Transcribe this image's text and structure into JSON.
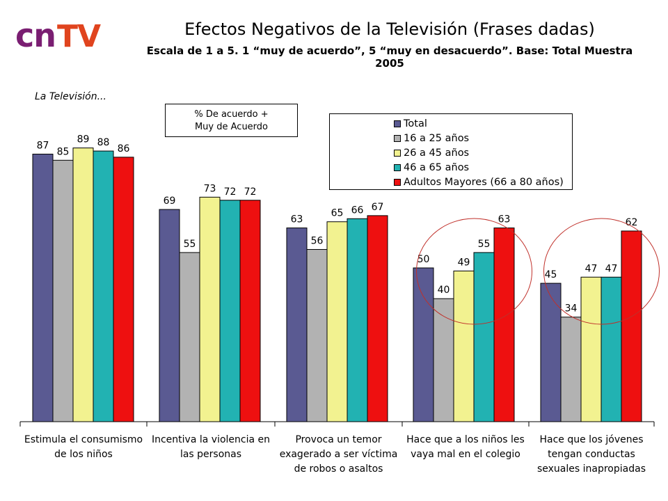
{
  "logo": {
    "part1": "cn",
    "part2": "TV"
  },
  "title": "Efectos Negativos de la Televisión (Frases dadas)",
  "subtitle": "Escala de 1 a 5. 1 “muy de acuerdo”, 5 “muy en desacuerdo”. Base: Total Muestra 2005",
  "intro": "La Televisión...",
  "note": {
    "line1": "% De acuerdo +",
    "line2": "Muy de Acuerdo"
  },
  "chart_data": {
    "type": "bar",
    "categories": [
      [
        "Estimula el consumismo",
        "de los niños"
      ],
      [
        "Incentiva la violencia en",
        "las personas"
      ],
      [
        "Provoca un temor",
        "exagerado a ser víctima",
        "de robos o asaltos"
      ],
      [
        "Hace que a los niños les",
        "vaya mal en el colegio"
      ],
      [
        "Hace que los jóvenes",
        "tengan conductas",
        "sexuales inapropiadas"
      ]
    ],
    "series": [
      {
        "name": "Total",
        "color": "#5a5a92",
        "values": [
          87,
          69,
          63,
          50,
          45
        ]
      },
      {
        "name": "16 a 25 años",
        "color": "#b2b2b2",
        "values": [
          85,
          55,
          56,
          40,
          34
        ]
      },
      {
        "name": "26 a 45 años",
        "color": "#f2f290",
        "values": [
          89,
          73,
          65,
          49,
          47
        ]
      },
      {
        "name": "46 a 65 años",
        "color": "#22b2b2",
        "values": [
          88,
          72,
          66,
          55,
          47
        ]
      },
      {
        "name": "Adultos Mayores (66 a 80 años)",
        "color": "#ee1010",
        "values": [
          86,
          72,
          67,
          63,
          62
        ]
      }
    ],
    "ylim": [
      0,
      100
    ],
    "grid": false,
    "legend_position": "top-right",
    "highlighted_categories": [
      3,
      4
    ],
    "highlight_color": "#c0302a"
  }
}
